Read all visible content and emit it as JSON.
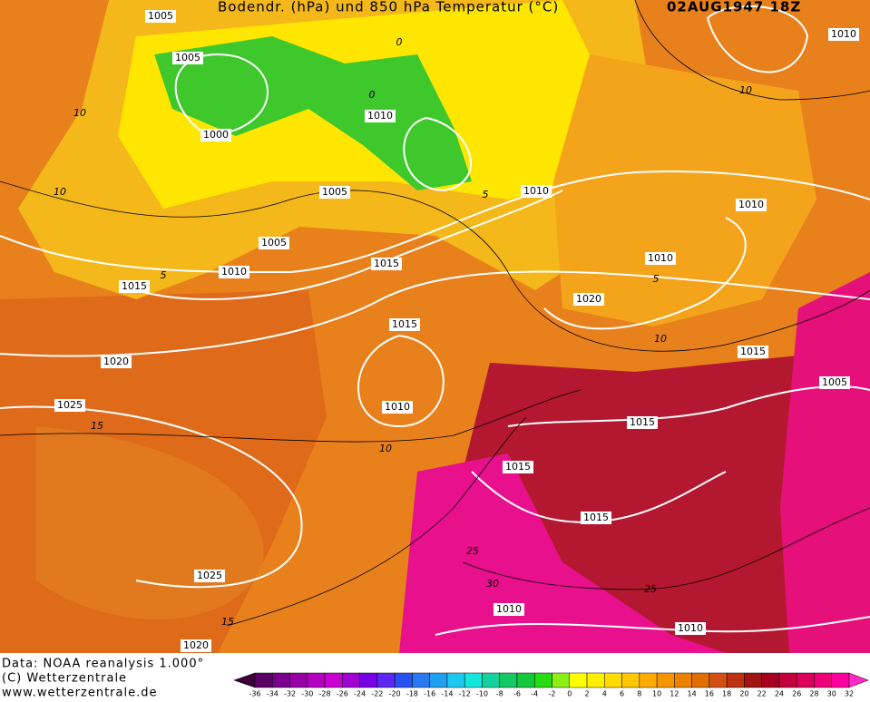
{
  "header": {
    "title": "Bodendr. (hPa) und 850 hPa Temperatur (°C)",
    "date": "02AUG1947 18Z"
  },
  "isobar_labels": [
    1005,
    1005,
    1000,
    1010,
    1005,
    1005,
    1010,
    1015,
    1015,
    1010,
    1010,
    1010,
    1020,
    1010,
    1015,
    1020,
    1010,
    1025,
    1015,
    1005,
    1015,
    1015,
    1015,
    1025,
    1010,
    1010,
    1020
  ],
  "temperature_labels": [
    0,
    0,
    10,
    10,
    10,
    5,
    5,
    5,
    10,
    10,
    15,
    15,
    25,
    30,
    25
  ],
  "footer": {
    "data_source": "Data: NOAA reanalysis 1.000°",
    "copyright": "(C) Wetterzentrale",
    "url": "www.wetterzentrale.de"
  },
  "colorbar": {
    "ticks": [
      -36,
      -34,
      -32,
      -30,
      -28,
      -26,
      -24,
      -22,
      -20,
      -18,
      -16,
      -14,
      -12,
      -10,
      -8,
      -6,
      -4,
      -2,
      0,
      2,
      4,
      6,
      8,
      10,
      12,
      14,
      16,
      18,
      20,
      22,
      24,
      26,
      28,
      30,
      32
    ],
    "colors": [
      "#3c003c",
      "#5a0064",
      "#78008c",
      "#9600a5",
      "#b400be",
      "#c800d2",
      "#a000d2",
      "#7800e6",
      "#5a28f0",
      "#2850f0",
      "#2878f0",
      "#1ea0f0",
      "#1ec8f0",
      "#14e6dc",
      "#14d2a0",
      "#14c864",
      "#14c83c",
      "#28dc14",
      "#8cf014",
      "#ffff00",
      "#fff000",
      "#ffdc00",
      "#ffc800",
      "#ffaa00",
      "#f59600",
      "#eb8200",
      "#e16e00",
      "#d25014",
      "#be3214",
      "#a01414",
      "#a5001e",
      "#c3003c",
      "#dc005a",
      "#f00078",
      "#ff00a0",
      "#ff28c8"
    ]
  }
}
